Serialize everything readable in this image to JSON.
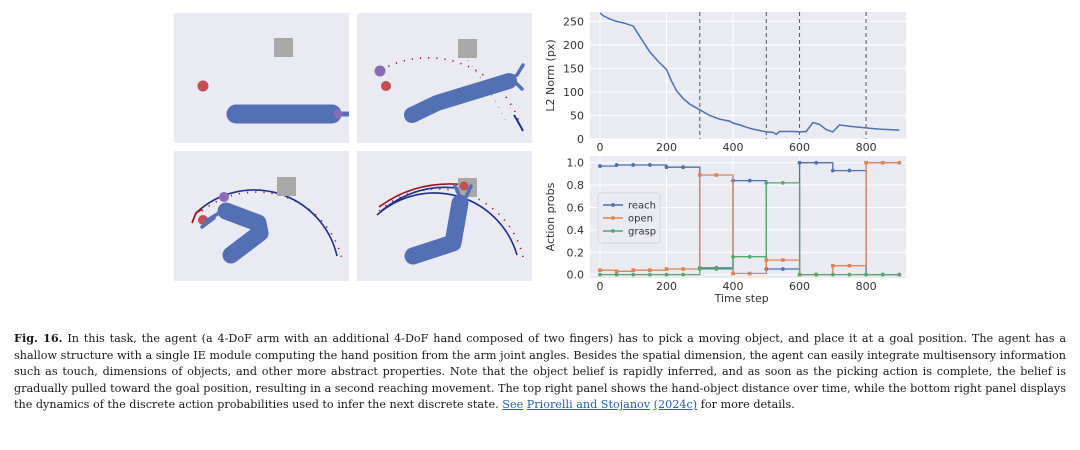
{
  "caption": {
    "label": "Fig. 16.",
    "text": "In this task, the agent (a 4-DoF arm with an additional 4-DoF hand composed of two fingers) has to pick a moving object, and place it at a goal position. The agent has a shallow structure with a single IE module computing the hand position from the arm joint angles. Besides the spatial dimension, the agent can easily integrate multisensory information such as touch, dimensions of objects, and other more abstract properties. Note that the object belief is rapidly inferred, and as soon as the picking action is complete, the belief is gradually pulled toward the goal position, resulting in a second reaching movement. The top right panel shows the hand-object distance over time, while the bottom right panel displays the dynamics of the discrete action probabilities used to infer the next discrete state.",
    "see": "See",
    "ref_authors": "Priorelli and Stojanov",
    "ref_year": "(2024c)",
    "ending": "for more details."
  },
  "colors": {
    "panel_bg": "#eaeaf2",
    "arm": "#5470b4",
    "target_red": "#c44e52",
    "target_purple": "#8a6bb8",
    "goal_gray": "#a8a8a8",
    "reach": "#4c72b0",
    "open": "#dd8452",
    "grasp": "#55a868",
    "trajectory_blue": "#1f2f8f",
    "trajectory_red": "#a0121c"
  },
  "chart_data": [
    {
      "type": "line",
      "ylabel": "L2 Norm (px)",
      "xlabel": "",
      "xlim": [
        -30,
        920
      ],
      "ylim": [
        0,
        270
      ],
      "xticks": [
        0,
        200,
        400,
        600,
        800
      ],
      "yticks": [
        0,
        50,
        100,
        150,
        200,
        250
      ],
      "vlines": [
        300,
        500,
        600,
        800
      ],
      "series": [
        {
          "x": [
            0,
            10,
            30,
            50,
            75,
            100,
            125,
            150,
            175,
            200,
            215,
            230,
            250,
            270,
            300,
            330,
            360,
            390,
            400,
            420,
            440,
            460,
            480,
            500,
            520,
            530,
            540,
            560,
            580,
            600,
            620,
            640,
            660,
            680,
            700,
            720,
            750,
            780,
            810,
            840,
            870,
            900
          ],
          "y": [
            268,
            262,
            255,
            250,
            246,
            240,
            212,
            185,
            165,
            148,
            123,
            103,
            86,
            74,
            62,
            50,
            42,
            38,
            34,
            30,
            25,
            21,
            18,
            15,
            14,
            10,
            16,
            16,
            16,
            15,
            16,
            35,
            31,
            20,
            15,
            30,
            27,
            25,
            23,
            21,
            20,
            19
          ]
        }
      ]
    },
    {
      "type": "line",
      "xlabel": "Time step",
      "ylabel": "Action probs",
      "xlim": [
        -30,
        920
      ],
      "ylim": [
        -0.03,
        1.06
      ],
      "xticks": [
        0,
        200,
        400,
        600,
        800
      ],
      "yticks": [
        0.0,
        0.2,
        0.4,
        0.6,
        0.8,
        1.0
      ],
      "legend_position": "left",
      "steps": [
        0,
        50,
        100,
        150,
        200,
        250,
        300,
        350,
        400,
        450,
        500,
        550,
        600,
        650,
        700,
        750,
        800,
        850,
        900
      ],
      "series": [
        {
          "name": "reach",
          "values": [
            0.97,
            0.98,
            0.98,
            0.98,
            0.96,
            0.96,
            0.06,
            0.06,
            0.84,
            0.84,
            0.05,
            0.05,
            1.0,
            1.0,
            0.93,
            0.93,
            0.0,
            0.0,
            0.0
          ]
        },
        {
          "name": "open",
          "values": [
            0.04,
            0.03,
            0.04,
            0.04,
            0.05,
            0.05,
            0.89,
            0.89,
            0.01,
            0.01,
            0.13,
            0.13,
            0.0,
            0.0,
            0.08,
            0.08,
            1.0,
            1.0,
            1.0
          ]
        },
        {
          "name": "grasp",
          "values": [
            0.0,
            0.0,
            0.0,
            0.0,
            0.0,
            0.0,
            0.05,
            0.05,
            0.16,
            0.16,
            0.82,
            0.82,
            0.0,
            0.0,
            0.0,
            0.0,
            0.0,
            0.0,
            0.0
          ]
        }
      ]
    }
  ]
}
